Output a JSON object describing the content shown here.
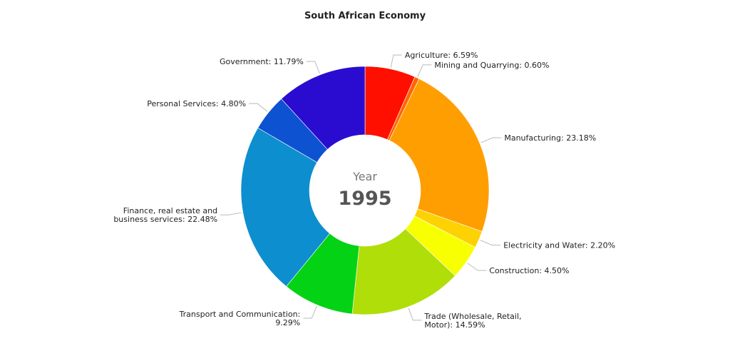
{
  "chart_data": {
    "type": "pie",
    "title": "South African Economy",
    "center_label": "Year",
    "center_value": "1995",
    "slices": [
      {
        "name": "Agriculture",
        "label": [
          "Agriculture: 6.59%"
        ],
        "value": 6.59,
        "color": "#ff0f00"
      },
      {
        "name": "Mining and Quarrying",
        "label": [
          "Mining and Quarrying: 0.60%"
        ],
        "value": 0.6,
        "color": "#ff6600"
      },
      {
        "name": "Manufacturing",
        "label": [
          "Manufacturing: 23.18%"
        ],
        "value": 23.18,
        "color": "#ff9e01"
      },
      {
        "name": "Electricity and Water",
        "label": [
          "Electricity and Water: 2.20%"
        ],
        "value": 2.2,
        "color": "#fcd202"
      },
      {
        "name": "Construction",
        "label": [
          "Construction: 4.50%"
        ],
        "value": 4.5,
        "color": "#f8ff01"
      },
      {
        "name": "Trade (Wholesale, Retail, Motor)",
        "label": [
          "Trade (Wholesale, Retail,",
          "Motor): 14.59%"
        ],
        "value": 14.59,
        "color": "#b0de09"
      },
      {
        "name": "Transport and Communication",
        "label": [
          "Transport and Communication:",
          "9.29%"
        ],
        "value": 9.29,
        "color": "#04d215"
      },
      {
        "name": "Finance, real estate and business services",
        "label": [
          "Finance, real estate and",
          "business services: 22.48%"
        ],
        "value": 22.48,
        "color": "#0d8ecf"
      },
      {
        "name": "Personal Services",
        "label": [
          "Personal Services: 4.80%"
        ],
        "value": 4.8,
        "color": "#0d52d1"
      },
      {
        "name": "Government",
        "label": [
          "Government: 11.79%"
        ],
        "value": 11.79,
        "color": "#2a0cd0"
      }
    ]
  }
}
